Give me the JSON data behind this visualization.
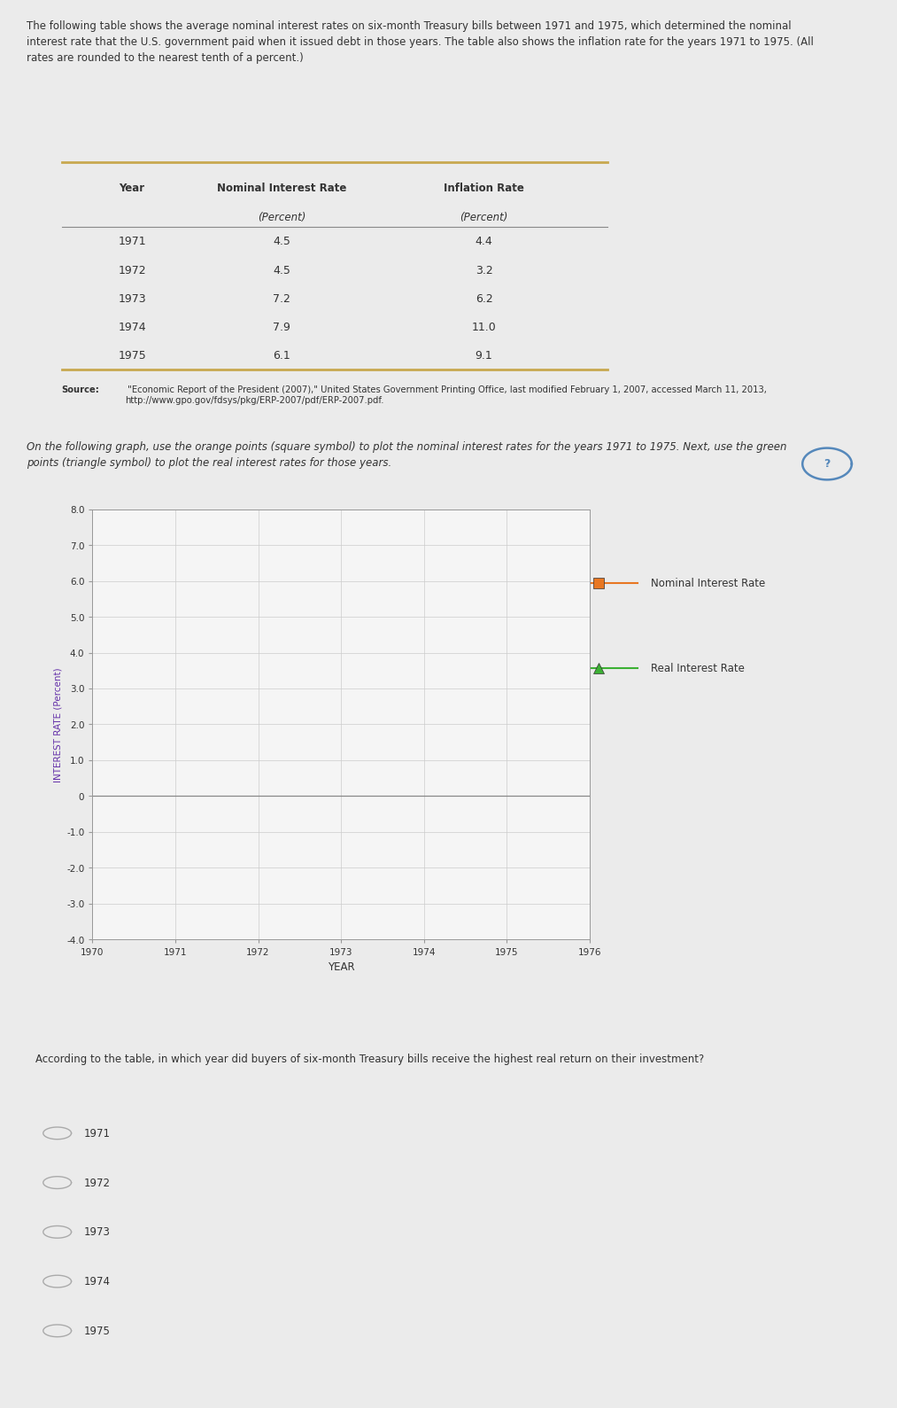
{
  "title_text": "The following table shows the average nominal interest rates on six-month Treasury bills between 1971 and 1975, which determined the nominal\ninterest rate that the U.S. government paid when it issued debt in those years. The table also shows the inflation rate for the years 1971 to 1975. (All\nrates are rounded to the nearest tenth of a percent.)",
  "table_data": [
    [
      "1971",
      "4.5",
      "4.4"
    ],
    [
      "1972",
      "4.5",
      "3.2"
    ],
    [
      "1973",
      "7.2",
      "6.2"
    ],
    [
      "1974",
      "7.9",
      "11.0"
    ],
    [
      "1975",
      "6.1",
      "9.1"
    ]
  ],
  "source_text_bold": "Source:",
  "source_text_normal": " \"Economic Report of the President (2007),\" United States Government Printing Office, last modified February 1, 2007, accessed March 11, 2013,\nhttp://www.gpo.gov/fdsys/pkg/ERP-2007/pdf/ERP-2007.pdf.",
  "graph_instruction_italic": "On the following graph, use the orange points (square symbol) to plot the ",
  "graph_instruction_bold": "nominal",
  "graph_instruction_italic2": " interest rates for the years 1971 to 1975. Next, use the green\npoints (triangle symbol) to plot the ",
  "graph_instruction_bold2": "real",
  "graph_instruction_italic3": " interest rates for those years.",
  "graph_ylabel": "INTEREST RATE (Percent)",
  "graph_xlabel": "YEAR",
  "graph_ylim": [
    -4.0,
    8.0
  ],
  "graph_xlim": [
    1970,
    1976
  ],
  "graph_yticks": [
    -4.0,
    -3.0,
    -2.0,
    -1.0,
    0,
    1.0,
    2.0,
    3.0,
    4.0,
    5.0,
    6.0,
    7.0,
    8.0
  ],
  "graph_xticks": [
    1970,
    1971,
    1972,
    1973,
    1974,
    1975,
    1976
  ],
  "legend_nominal_label": "Nominal Interest Rate",
  "legend_nominal_color": "#E87722",
  "legend_real_label": "Real Interest Rate",
  "legend_real_color": "#3CB034",
  "question_text": "According to the table, in which year did buyers of six-month Treasury bills receive the highest real return on their investment?",
  "question_options": [
    "1971",
    "1972",
    "1973",
    "1974",
    "1975"
  ],
  "outer_bg": "#EBEBEB",
  "panel_bg": "#FFFFFF",
  "table_alt_row": "#EBEBEB",
  "table_border_color": "#C8A850",
  "grid_color": "#CCCCCC",
  "axis_color": "#999999",
  "text_color": "#333333",
  "ylabel_color": "#6633AA"
}
